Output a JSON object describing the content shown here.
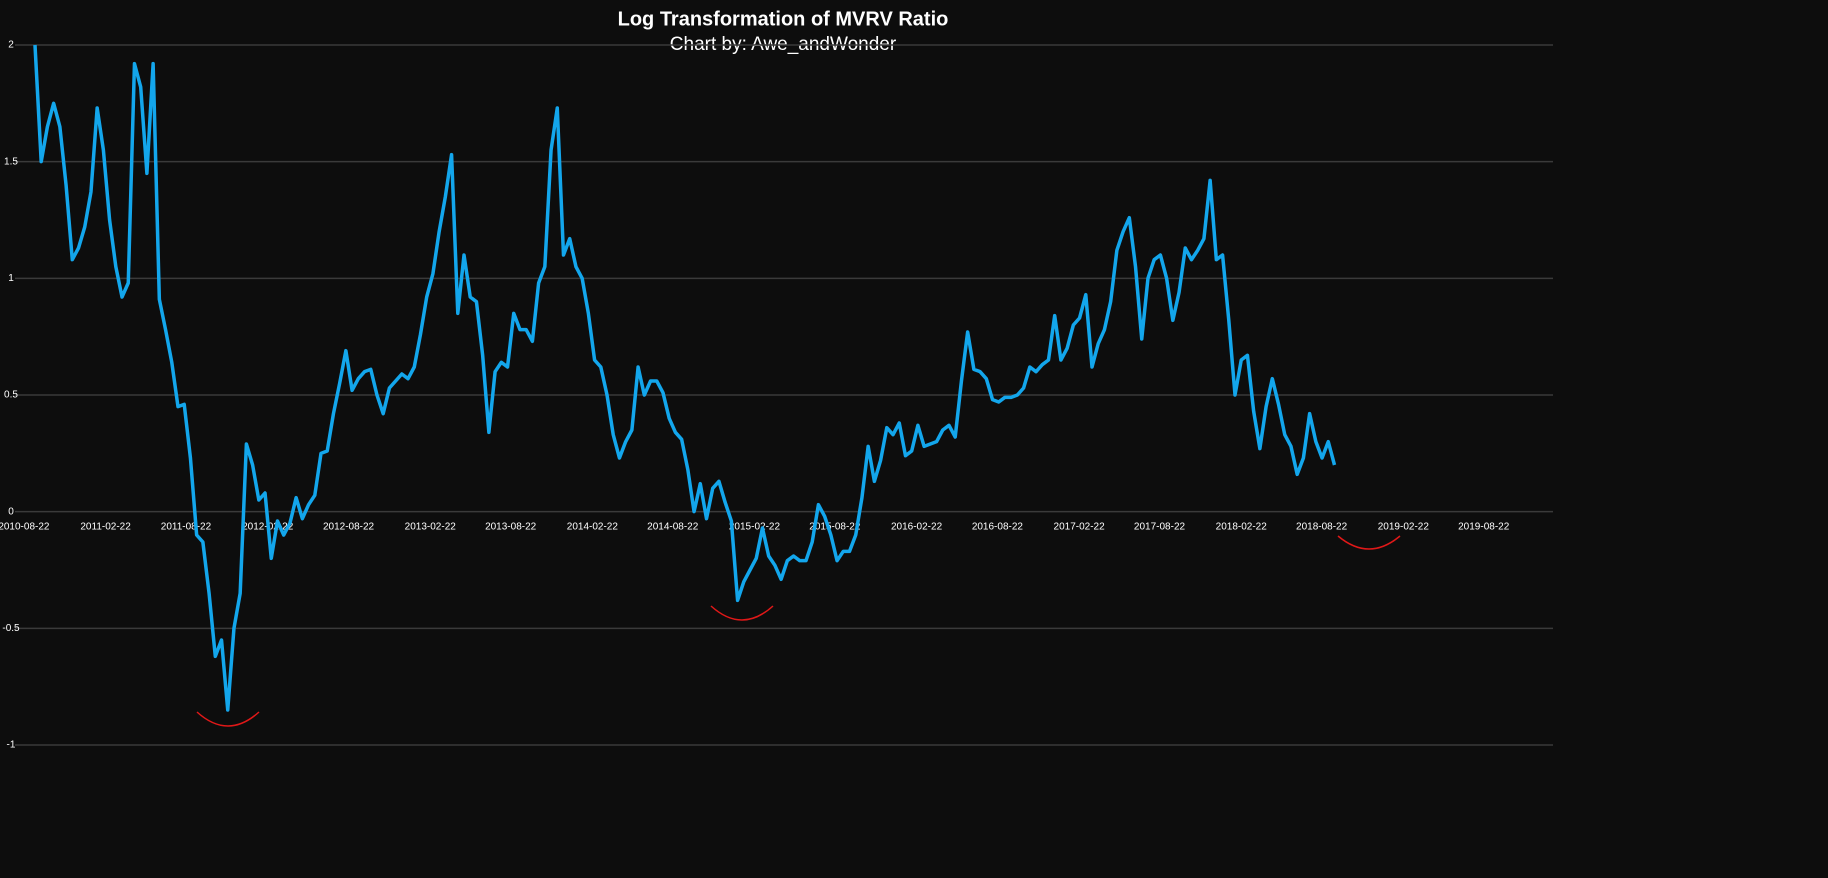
{
  "chart_data": {
    "type": "line",
    "title": "Log Transformation of MVRV Ratio",
    "subtitle": "Chart by: Awe_andWonder",
    "color": "#13a6ec",
    "x": [
      "2010-09-16",
      "2010-09-30",
      "2010-10-14",
      "2010-10-28",
      "2010-11-11",
      "2010-11-25",
      "2010-12-09",
      "2010-12-23",
      "2011-01-06",
      "2011-01-20",
      "2011-02-03",
      "2011-02-17",
      "2011-03-03",
      "2011-03-17",
      "2011-03-31",
      "2011-04-14",
      "2011-04-28",
      "2011-05-12",
      "2011-05-26",
      "2011-06-09",
      "2011-06-23",
      "2011-07-07",
      "2011-07-21",
      "2011-08-04",
      "2011-08-18",
      "2011-09-01",
      "2011-09-15",
      "2011-09-29",
      "2011-10-13",
      "2011-10-27",
      "2011-11-10",
      "2011-11-24",
      "2011-12-08",
      "2011-12-22",
      "2012-01-05",
      "2012-01-19",
      "2012-02-02",
      "2012-02-16",
      "2012-03-01",
      "2012-03-15",
      "2012-03-29",
      "2012-04-12",
      "2012-04-26",
      "2012-05-10",
      "2012-05-24",
      "2012-06-07",
      "2012-06-21",
      "2012-07-05",
      "2012-07-19",
      "2012-08-02",
      "2012-08-16",
      "2012-08-30",
      "2012-09-13",
      "2012-09-27",
      "2012-10-11",
      "2012-10-25",
      "2012-11-08",
      "2012-11-22",
      "2012-12-06",
      "2012-12-20",
      "2013-01-03",
      "2013-01-17",
      "2013-01-31",
      "2013-02-14",
      "2013-02-28",
      "2013-03-14",
      "2013-03-28",
      "2013-04-11",
      "2013-04-25",
      "2013-05-09",
      "2013-05-23",
      "2013-06-06",
      "2013-06-20",
      "2013-07-04",
      "2013-07-18",
      "2013-08-01",
      "2013-08-15",
      "2013-08-29",
      "2013-09-12",
      "2013-09-26",
      "2013-10-10",
      "2013-10-24",
      "2013-11-07",
      "2013-11-21",
      "2013-12-05",
      "2013-12-19",
      "2014-01-02",
      "2014-01-16",
      "2014-01-30",
      "2014-02-13",
      "2014-02-27",
      "2014-03-13",
      "2014-03-27",
      "2014-04-10",
      "2014-04-24",
      "2014-05-08",
      "2014-05-22",
      "2014-06-05",
      "2014-06-19",
      "2014-07-03",
      "2014-07-17",
      "2014-07-31",
      "2014-08-14",
      "2014-08-28",
      "2014-09-11",
      "2014-09-25",
      "2014-10-09",
      "2014-10-23",
      "2014-11-06",
      "2014-11-20",
      "2014-12-04",
      "2014-12-18",
      "2015-01-01",
      "2015-01-15",
      "2015-01-29",
      "2015-02-12",
      "2015-02-26",
      "2015-03-12",
      "2015-03-26",
      "2015-04-09",
      "2015-04-23",
      "2015-05-07",
      "2015-05-21",
      "2015-06-04",
      "2015-06-18",
      "2015-07-02",
      "2015-07-16",
      "2015-07-30",
      "2015-08-13",
      "2015-08-27",
      "2015-09-10",
      "2015-09-24",
      "2015-10-08",
      "2015-10-22",
      "2015-11-05",
      "2015-11-19",
      "2015-12-03",
      "2015-12-17",
      "2015-12-31",
      "2016-01-14",
      "2016-01-28",
      "2016-02-11",
      "2016-02-25",
      "2016-03-10",
      "2016-03-24",
      "2016-04-07",
      "2016-04-21",
      "2016-05-05",
      "2016-05-19",
      "2016-06-02",
      "2016-06-16",
      "2016-06-30",
      "2016-07-14",
      "2016-07-28",
      "2016-08-11",
      "2016-08-25",
      "2016-09-08",
      "2016-09-22",
      "2016-10-06",
      "2016-10-20",
      "2016-11-03",
      "2016-11-17",
      "2016-12-01",
      "2016-12-15",
      "2016-12-29",
      "2017-01-12",
      "2017-01-26",
      "2017-02-09",
      "2017-02-23",
      "2017-03-09",
      "2017-03-23",
      "2017-04-06",
      "2017-04-20",
      "2017-05-04",
      "2017-05-18",
      "2017-06-01",
      "2017-06-15",
      "2017-06-29",
      "2017-07-13",
      "2017-07-27",
      "2017-08-10",
      "2017-08-24",
      "2017-09-07",
      "2017-09-21",
      "2017-10-05",
      "2017-10-19",
      "2017-11-02",
      "2017-11-16",
      "2017-11-30",
      "2017-12-14",
      "2017-12-28",
      "2018-01-11",
      "2018-01-25",
      "2018-02-08",
      "2018-02-22",
      "2018-03-08",
      "2018-03-22",
      "2018-04-05",
      "2018-04-19",
      "2018-05-03",
      "2018-05-17",
      "2018-05-31",
      "2018-06-14",
      "2018-06-28",
      "2018-07-12",
      "2018-07-26",
      "2018-08-09",
      "2018-08-23",
      "2018-09-06",
      "2018-09-20"
    ],
    "values": [
      2.0,
      1.5,
      1.65,
      1.75,
      1.65,
      1.4,
      1.08,
      1.13,
      1.22,
      1.37,
      1.73,
      1.55,
      1.25,
      1.05,
      0.92,
      0.98,
      1.92,
      1.82,
      1.45,
      1.92,
      0.91,
      0.78,
      0.64,
      0.45,
      0.46,
      0.23,
      -0.1,
      -0.13,
      -0.35,
      -0.62,
      -0.55,
      -0.85,
      -0.5,
      -0.35,
      0.29,
      0.2,
      0.05,
      0.08,
      -0.2,
      -0.04,
      -0.1,
      -0.05,
      0.06,
      -0.03,
      0.03,
      0.07,
      0.25,
      0.26,
      0.42,
      0.55,
      0.69,
      0.52,
      0.57,
      0.6,
      0.61,
      0.5,
      0.42,
      0.53,
      0.56,
      0.59,
      0.57,
      0.62,
      0.76,
      0.92,
      1.02,
      1.2,
      1.35,
      1.53,
      0.85,
      1.1,
      0.92,
      0.9,
      0.67,
      0.34,
      0.6,
      0.64,
      0.62,
      0.85,
      0.78,
      0.78,
      0.73,
      0.98,
      1.05,
      1.55,
      1.73,
      1.1,
      1.17,
      1.05,
      1.0,
      0.85,
      0.65,
      0.62,
      0.5,
      0.33,
      0.23,
      0.3,
      0.35,
      0.62,
      0.5,
      0.56,
      0.56,
      0.51,
      0.4,
      0.34,
      0.31,
      0.18,
      0.0,
      0.12,
      -0.03,
      0.1,
      0.13,
      0.04,
      -0.04,
      -0.38,
      -0.3,
      -0.25,
      -0.2,
      -0.07,
      -0.19,
      -0.23,
      -0.29,
      -0.21,
      -0.19,
      -0.21,
      -0.21,
      -0.13,
      0.03,
      -0.02,
      -0.1,
      -0.21,
      -0.17,
      -0.17,
      -0.1,
      0.06,
      0.28,
      0.13,
      0.22,
      0.36,
      0.33,
      0.38,
      0.24,
      0.26,
      0.37,
      0.28,
      0.29,
      0.3,
      0.35,
      0.37,
      0.32,
      0.56,
      0.77,
      0.61,
      0.6,
      0.57,
      0.48,
      0.47,
      0.49,
      0.49,
      0.5,
      0.53,
      0.62,
      0.6,
      0.63,
      0.65,
      0.84,
      0.65,
      0.7,
      0.8,
      0.83,
      0.93,
      0.62,
      0.72,
      0.78,
      0.9,
      1.12,
      1.2,
      1.26,
      1.05,
      0.74,
      1.0,
      1.08,
      1.1,
      1.0,
      0.82,
      0.94,
      1.13,
      1.08,
      1.12,
      1.17,
      1.42,
      1.08,
      1.1,
      0.82,
      0.5,
      0.65,
      0.67,
      0.43,
      0.27,
      0.45,
      0.57,
      0.46,
      0.33,
      0.28,
      0.16,
      0.23,
      0.42,
      0.3,
      0.23,
      0.3,
      0.2
    ],
    "xlim": [
      "2010-08-02",
      "2020-01-25"
    ],
    "xticks": [
      "2010-08-22",
      "2011-02-22",
      "2011-08-22",
      "2012-02-22",
      "2012-08-22",
      "2013-02-22",
      "2013-08-22",
      "2014-02-22",
      "2014-08-22",
      "2015-02-22",
      "2015-08-22",
      "2016-02-22",
      "2016-08-22",
      "2017-02-22",
      "2017-08-22",
      "2018-02-22",
      "2018-08-22",
      "2019-02-22",
      "2019-08-22"
    ],
    "ylim": [
      -1,
      2
    ],
    "yticks": [
      -1,
      -0.5,
      0,
      0.5,
      1,
      1.5,
      2
    ],
    "grid": true
  }
}
